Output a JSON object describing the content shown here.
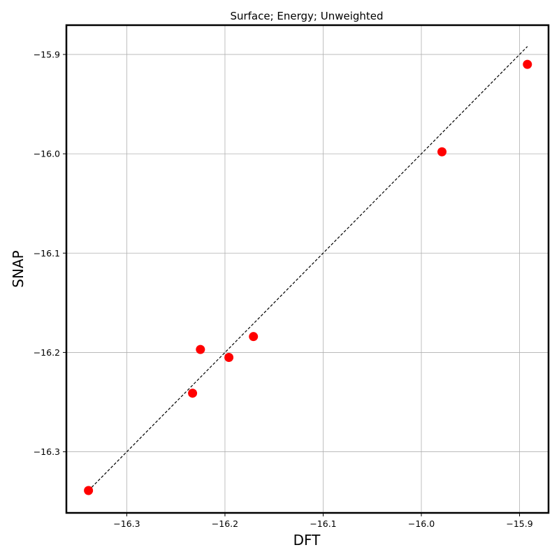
{
  "chart_data": {
    "type": "scatter",
    "title": "Surface; Energy; Unweighted",
    "xlabel": "DFT",
    "ylabel": "SNAP",
    "xlim": [
      -16.3615,
      -15.8705
    ],
    "ylim": [
      -16.3615,
      -15.8705
    ],
    "xticks": [
      -16.3,
      -16.2,
      -16.1,
      -16.0,
      -15.9
    ],
    "yticks": [
      -16.3,
      -16.2,
      -16.1,
      -16.0,
      -15.9
    ],
    "xtick_labels": [
      "−16.3",
      "−16.2",
      "−16.1",
      "−16.0",
      "−15.9"
    ],
    "ytick_labels": [
      "−16.3",
      "−16.2",
      "−16.1",
      "−16.0",
      "−15.9"
    ],
    "grid": true,
    "points": [
      {
        "x": -16.339,
        "y": -16.339
      },
      {
        "x": -16.233,
        "y": -16.241
      },
      {
        "x": -16.225,
        "y": -16.197
      },
      {
        "x": -16.196,
        "y": -16.205
      },
      {
        "x": -16.171,
        "y": -16.184
      },
      {
        "x": -15.979,
        "y": -15.998
      },
      {
        "x": -15.892,
        "y": -15.91
      }
    ],
    "reference_line": {
      "x": [
        -16.339,
        -15.892
      ],
      "y": [
        -16.339,
        -15.892
      ],
      "style": "dashed",
      "color": "#000000"
    },
    "marker_color": "#ff0000"
  }
}
